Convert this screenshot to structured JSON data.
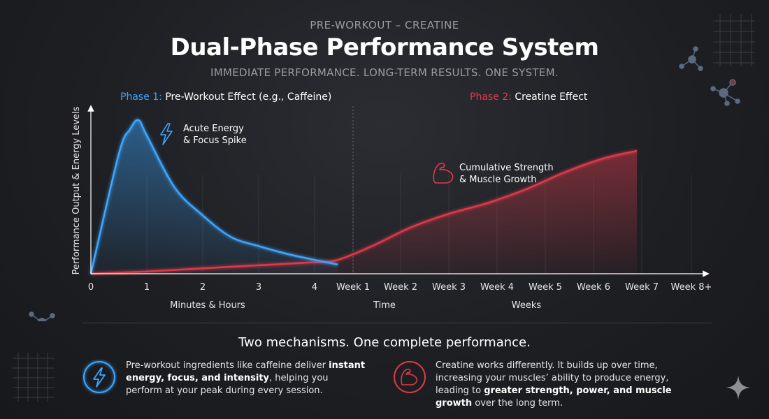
{
  "header": {
    "eyebrow": "PRE-WORKOUT – CREATINE",
    "title": "Dual-Phase Performance System",
    "subtitle": "IMMEDIATE PERFORMANCE. LONG-TERM RESULTS. ONE SYSTEM."
  },
  "phases": {
    "phase1": {
      "label": "Phase 1:",
      "text": "Pre-Workout Effect (e.g., Caffeine)"
    },
    "phase2": {
      "label": "Phase 2:",
      "text": "Creatine Effect"
    }
  },
  "colors": {
    "blue": "#3aa6ff",
    "red": "#e0394a",
    "bg": "#1e1f23"
  },
  "chart_data": {
    "type": "area",
    "ylabel": "Performance Output & Energy Levels",
    "x_ticks": [
      "0",
      "1",
      "2",
      "3",
      "4",
      "Week 1",
      "Week 2",
      "Week 3",
      "Week 4",
      "Week 5",
      "Week 6",
      "Week 7",
      "Week 8+"
    ],
    "x_group_labels": [
      "Minutes & Hours",
      "Time",
      "Weeks"
    ],
    "series": [
      {
        "key": "pre_workout",
        "color": "#3aa6ff",
        "x": [
          0,
          0.5,
          0.7,
          0.85,
          1.0,
          1.5,
          2.0,
          2.5,
          3.0,
          3.5,
          4.0,
          4.6
        ],
        "y": [
          0,
          78,
          94,
          100,
          90,
          56,
          38,
          24,
          18,
          13,
          9,
          6
        ]
      },
      {
        "key": "creatine",
        "color": "#e0394a",
        "x": [
          0,
          1,
          2,
          3,
          4,
          4.6,
          5.4,
          6.2,
          7.0,
          7.8,
          8.6,
          9.4,
          10.2,
          10.9
        ],
        "y": [
          0,
          1.5,
          3.5,
          5.5,
          7.5,
          9,
          18,
          30,
          39,
          46,
          55,
          66,
          75,
          80
        ]
      }
    ],
    "annotations": [
      {
        "key": "spike",
        "lines": [
          "Acute Energy",
          "& Focus Spike"
        ],
        "icon": "lightning-icon"
      },
      {
        "key": "growth",
        "lines": [
          "Cumulative Strength",
          "& Muscle Growth"
        ],
        "icon": "flexed-arm-icon"
      }
    ]
  },
  "bottom": {
    "heading": "Two mechanisms. One complete performance.",
    "left": {
      "icon": "lightning-icon",
      "pre": "Pre-workout ingredients like caffeine deliver ",
      "bold": "instant energy, focus, and intensity",
      "post": ", helping you perform at your peak during every session."
    },
    "right": {
      "icon": "flexed-arm-icon",
      "pre": "Creatine works differently. It builds up over time, increasing your muscles’ ability to produce energy, leading to ",
      "bold": "greater strength, power, and muscle growth",
      "post": " over the long term."
    }
  }
}
